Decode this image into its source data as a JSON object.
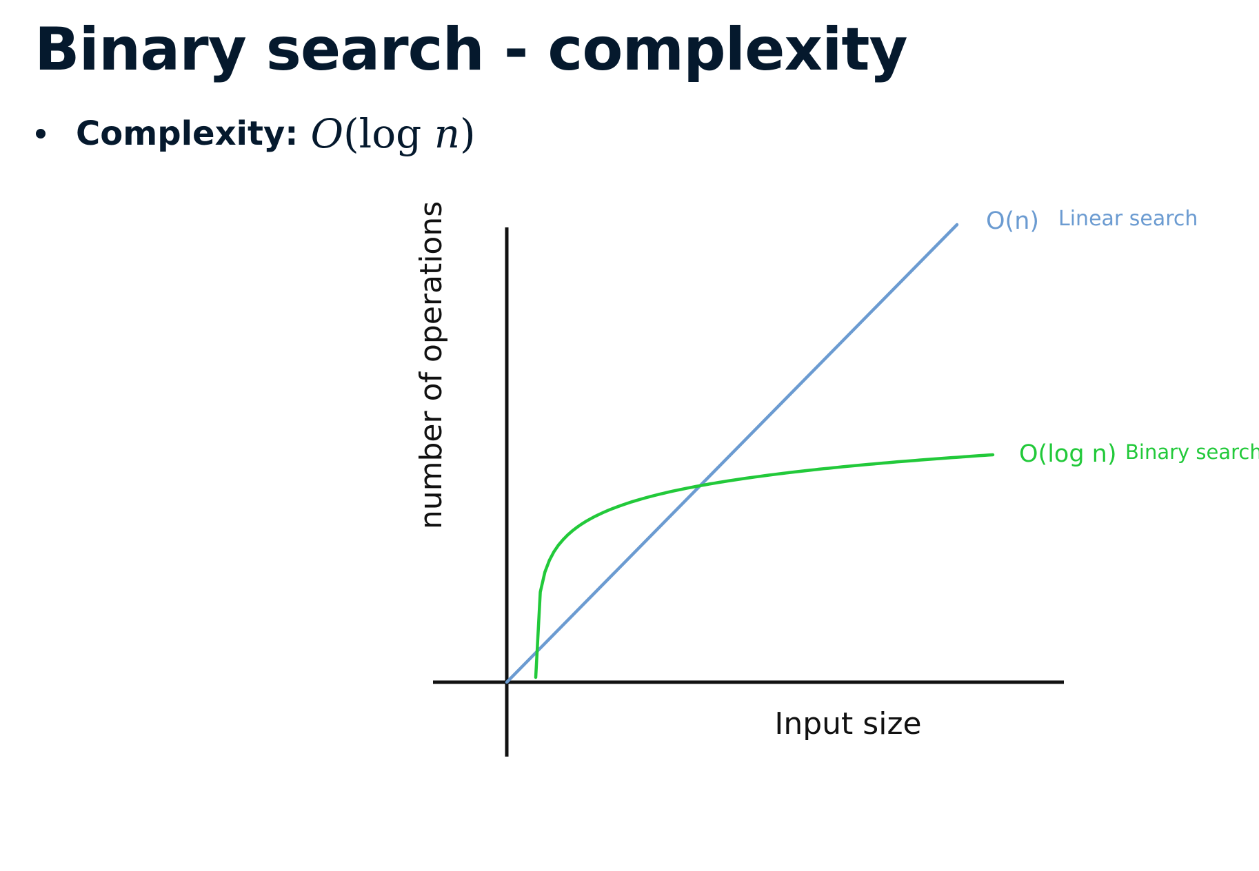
{
  "slide": {
    "title": "Binary search - complexity",
    "bullet_label": "Complexity:",
    "bullet_math": {
      "O": "O",
      "open": "(",
      "log": "log",
      "n": "n",
      "close": ")"
    }
  },
  "chart_data": {
    "type": "line",
    "title": "",
    "xlabel": "Input size",
    "ylabel": "number of operations",
    "grid": false,
    "legend": "inline labels at line ends (right)",
    "series": [
      {
        "name": "O(n)",
        "annotation": "Linear search",
        "color": "#6b9bd1",
        "function": "linear"
      },
      {
        "name": "O(log n)",
        "annotation": "Binary search",
        "color": "#22c93a",
        "function": "logarithmic"
      }
    ],
    "colors": {
      "axes": "#111111",
      "text": "#05192d"
    }
  }
}
